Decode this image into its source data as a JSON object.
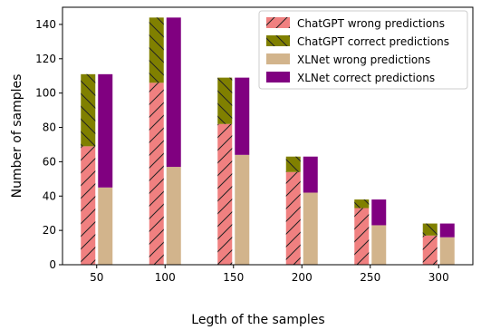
{
  "chart_data": {
    "type": "bar",
    "stacked": true,
    "grouped": true,
    "categories": [
      "50",
      "100",
      "150",
      "200",
      "250",
      "300"
    ],
    "xlabel": "Legth of the samples",
    "ylabel": "Number of samples",
    "ylim": [
      0,
      150
    ],
    "yticks": [
      0,
      20,
      40,
      60,
      80,
      100,
      120,
      140
    ],
    "grid": false,
    "legend_position": "top-right",
    "groups": [
      {
        "series": [
          {
            "name": "ChatGPT wrong predictions",
            "values": [
              69,
              106,
              82,
              54,
              33,
              17
            ],
            "color": "#f08080",
            "hatch": "//"
          },
          {
            "name": "ChatGPT correct predictions",
            "values": [
              42,
              38,
              27,
              9,
              5,
              7
            ],
            "color": "#808000",
            "hatch": "\\\\"
          }
        ]
      },
      {
        "series": [
          {
            "name": "XLNet wrong predictions",
            "values": [
              45,
              57,
              64,
              42,
              23,
              16
            ],
            "color": "#d2b48c",
            "hatch": ""
          },
          {
            "name": "XLNet correct predictions",
            "values": [
              66,
              87,
              45,
              21,
              15,
              8
            ],
            "color": "#800080",
            "hatch": ""
          }
        ]
      }
    ]
  }
}
